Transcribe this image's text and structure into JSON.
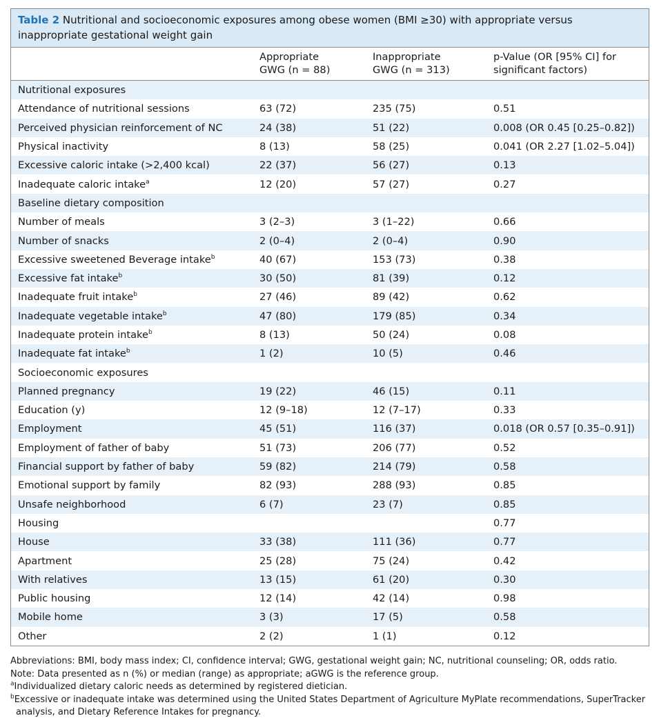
{
  "caption": {
    "label": "Table 2",
    "text": " Nutritional and socioeconomic exposures among obese women (BMI ≥30) with appropriate versus inappropriate gestational weight gain"
  },
  "header": {
    "col1_line1": "Appropriate",
    "col1_line2": "GWG (n = 88)",
    "col2_line1": "Inappropriate",
    "col2_line2": "GWG (n = 313)",
    "col3_line1": "p-Value (OR [95% CI] for",
    "col3_line2": "significant factors)"
  },
  "rows": [
    {
      "label": "Nutritional exposures",
      "a": "",
      "b": "",
      "p": ""
    },
    {
      "label": "Attendance of nutritional sessions",
      "a": "63 (72)",
      "b": "235 (75)",
      "p": "0.51"
    },
    {
      "label": "Perceived physician reinforcement of NC",
      "a": "24 (38)",
      "b": "51 (22)",
      "p": "0.008 (OR 0.45 [0.25–0.82])"
    },
    {
      "label": "Physical inactivity",
      "a": "8 (13)",
      "b": "58 (25)",
      "p": "0.041 (OR 2.27 [1.02–5.04])"
    },
    {
      "label": "Excessive caloric intake (>2,400 kcal)",
      "a": "22 (37)",
      "b": "56 (27)",
      "p": "0.13"
    },
    {
      "label": "Inadequate caloric intake",
      "sup": "a",
      "a": "12 (20)",
      "b": "57 (27)",
      "p": "0.27"
    },
    {
      "label": "Baseline dietary composition",
      "a": "",
      "b": "",
      "p": ""
    },
    {
      "label": "Number of meals",
      "a": "3 (2–3)",
      "b": "3 (1–22)",
      "p": "0.66"
    },
    {
      "label": "Number of snacks",
      "a": "2 (0–4)",
      "b": "2 (0–4)",
      "p": "0.90"
    },
    {
      "label": "Excessive sweetened Beverage intake",
      "sup": "b",
      "a": "40 (67)",
      "b": "153 (73)",
      "p": "0.38"
    },
    {
      "label": "Excessive fat intake",
      "sup": "b",
      "a": "30 (50)",
      "b": "81 (39)",
      "p": "0.12"
    },
    {
      "label": "Inadequate fruit intake",
      "sup": "b",
      "a": "27 (46)",
      "b": "89 (42)",
      "p": "0.62"
    },
    {
      "label": "Inadequate vegetable intake",
      "sup": "b",
      "a": "47 (80)",
      "b": "179 (85)",
      "p": "0.34"
    },
    {
      "label": "Inadequate protein intake",
      "sup": "b",
      "a": "8 (13)",
      "b": "50 (24)",
      "p": "0.08"
    },
    {
      "label": "Inadequate fat intake",
      "sup": "b",
      "a": "1 (2)",
      "b": "10 (5)",
      "p": "0.46"
    },
    {
      "label": "Socioeconomic exposures",
      "a": "",
      "b": "",
      "p": ""
    },
    {
      "label": "Planned pregnancy",
      "a": "19 (22)",
      "b": "46 (15)",
      "p": "0.11"
    },
    {
      "label": "Education (y)",
      "a": "12 (9–18)",
      "b": "12 (7–17)",
      "p": "0.33"
    },
    {
      "label": "Employment",
      "a": "45 (51)",
      "b": "116 (37)",
      "p": "0.018 (OR 0.57 [0.35–0.91])"
    },
    {
      "label": "Employment of father of baby",
      "a": "51 (73)",
      "b": "206 (77)",
      "p": "0.52"
    },
    {
      "label": "Financial support by father of baby",
      "a": "59 (82)",
      "b": "214 (79)",
      "p": "0.58"
    },
    {
      "label": "Emotional support by family",
      "a": "82 (93)",
      "b": "288 (93)",
      "p": "0.85"
    },
    {
      "label": "Unsafe neighborhood",
      "a": "6 (7)",
      "b": "23 (7)",
      "p": "0.85"
    },
    {
      "label": "Housing",
      "a": "",
      "b": "",
      "p": "0.77"
    },
    {
      "label": "House",
      "a": "33 (38)",
      "b": "111 (36)",
      "p": "0.77"
    },
    {
      "label": "Apartment",
      "a": "25 (28)",
      "b": "75 (24)",
      "p": "0.42"
    },
    {
      "label": "With relatives",
      "a": "13 (15)",
      "b": "61 (20)",
      "p": "0.30"
    },
    {
      "label": "Public housing",
      "a": "12 (14)",
      "b": "42 (14)",
      "p": "0.98"
    },
    {
      "label": "Mobile home",
      "a": "3 (3)",
      "b": "17 (5)",
      "p": "0.58"
    },
    {
      "label": "Other",
      "a": "2 (2)",
      "b": "1 (1)",
      "p": "0.12"
    }
  ],
  "footnotes": {
    "abbreviations": "Abbreviations: BMI, body mass index; CI, confidence interval; GWG, gestational weight gain; NC, nutritional counseling; OR, odds ratio.",
    "note": "Note: Data presented as n (%) or median (range) as appropriate; aGWG is the reference group.",
    "a_mark": "a",
    "a_text": "Individualized dietary caloric needs as determined by registered dietician.",
    "b_mark": "b",
    "b_text": "Excessive or inadequate intake was determined using the United States Department of Agriculture MyPlate recommendations, SuperTracker",
    "b_text2": "analysis, and Dietary Reference Intakes for pregnancy."
  }
}
